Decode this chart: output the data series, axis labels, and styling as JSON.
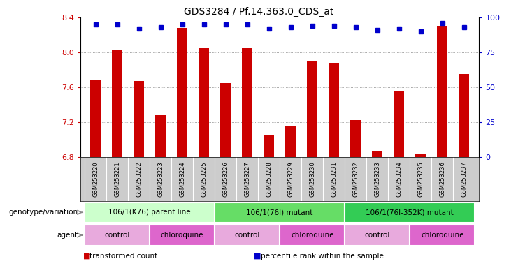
{
  "title": "GDS3284 / Pf.14.363.0_CDS_at",
  "samples": [
    "GSM253220",
    "GSM253221",
    "GSM253222",
    "GSM253223",
    "GSM253224",
    "GSM253225",
    "GSM253226",
    "GSM253227",
    "GSM253228",
    "GSM253229",
    "GSM253230",
    "GSM253231",
    "GSM253232",
    "GSM253233",
    "GSM253234",
    "GSM253235",
    "GSM253236",
    "GSM253237"
  ],
  "bar_values": [
    7.68,
    8.03,
    7.67,
    7.28,
    8.28,
    8.05,
    7.65,
    8.05,
    7.05,
    7.15,
    7.9,
    7.88,
    7.22,
    6.87,
    7.56,
    6.83,
    8.3,
    7.75
  ],
  "percentile_values": [
    95,
    95,
    92,
    93,
    95,
    95,
    95,
    95,
    92,
    93,
    94,
    94,
    93,
    91,
    92,
    90,
    96,
    93
  ],
  "ylim_left": [
    6.8,
    8.4
  ],
  "ylim_right": [
    0,
    100
  ],
  "yticks_left": [
    6.8,
    7.2,
    7.6,
    8.0,
    8.4
  ],
  "yticks_right": [
    0,
    25,
    50,
    75,
    100
  ],
  "bar_color": "#cc0000",
  "dot_color": "#0000cc",
  "background_color": "#ffffff",
  "grid_color": "#888888",
  "xtick_bg_color": "#cccccc",
  "genotype_groups": [
    {
      "label": "106/1(K76) parent line",
      "start": 0,
      "end": 5,
      "color": "#ccffcc"
    },
    {
      "label": "106/1(76I) mutant",
      "start": 6,
      "end": 11,
      "color": "#66dd66"
    },
    {
      "label": "106/1(76I-352K) mutant",
      "start": 12,
      "end": 17,
      "color": "#33cc55"
    }
  ],
  "agent_groups": [
    {
      "label": "control",
      "start": 0,
      "end": 2,
      "color": "#e8aadd"
    },
    {
      "label": "chloroquine",
      "start": 3,
      "end": 5,
      "color": "#dd66cc"
    },
    {
      "label": "control",
      "start": 6,
      "end": 8,
      "color": "#e8aadd"
    },
    {
      "label": "chloroquine",
      "start": 9,
      "end": 11,
      "color": "#dd66cc"
    },
    {
      "label": "control",
      "start": 12,
      "end": 14,
      "color": "#e8aadd"
    },
    {
      "label": "chloroquine",
      "start": 15,
      "end": 17,
      "color": "#dd66cc"
    }
  ],
  "legend_items": [
    {
      "label": "transformed count",
      "color": "#cc0000"
    },
    {
      "label": "percentile rank within the sample",
      "color": "#0000cc"
    }
  ],
  "genotype_label": "genotype/variation",
  "agent_label": "agent",
  "arrow_color": "#888888"
}
